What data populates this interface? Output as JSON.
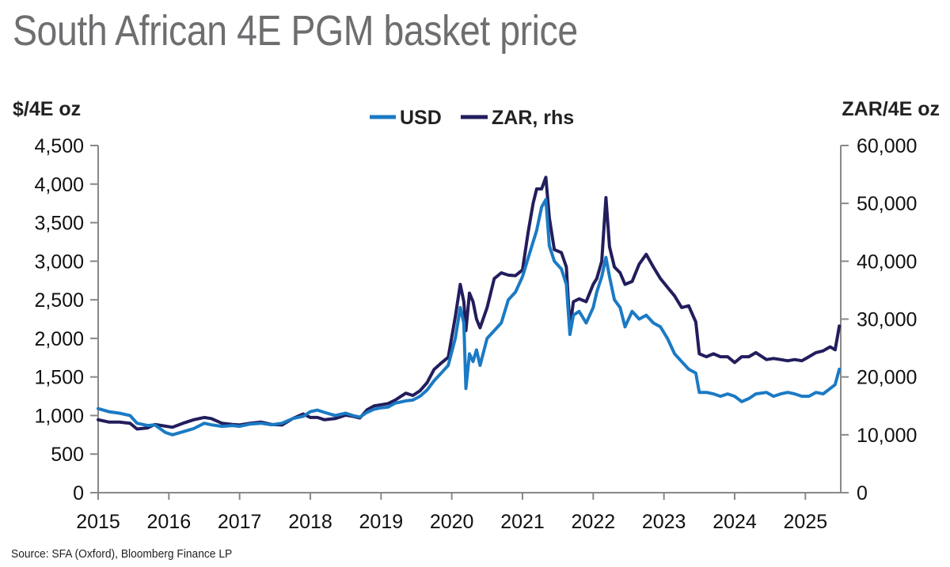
{
  "title": "South African 4E PGM basket price",
  "source": "Source: SFA (Oxford), Bloomberg Finance LP",
  "chart_data": {
    "type": "line",
    "ylabel_left": "$/4E oz",
    "ylabel_right": "ZAR/4E oz",
    "ylim_left": [
      0,
      4500
    ],
    "ylim_right": [
      0,
      60000
    ],
    "xlim": [
      2015.0,
      2025.5
    ],
    "left_ticks": [
      "0",
      "500",
      "1,000",
      "1,500",
      "2,000",
      "2,500",
      "3,000",
      "3,500",
      "4,000",
      "4,500"
    ],
    "left_tick_values": [
      0,
      500,
      1000,
      1500,
      2000,
      2500,
      3000,
      3500,
      4000,
      4500
    ],
    "right_ticks": [
      "0",
      "10,000",
      "20,000",
      "30,000",
      "40,000",
      "50,000",
      "60,000"
    ],
    "right_tick_values": [
      0,
      10000,
      20000,
      30000,
      40000,
      50000,
      60000
    ],
    "x_ticks": [
      "2015",
      "2016",
      "2017",
      "2018",
      "2019",
      "2020",
      "2021",
      "2022",
      "2023",
      "2024",
      "2025"
    ],
    "x_tick_values": [
      2015,
      2016,
      2017,
      2018,
      2019,
      2020,
      2021,
      2022,
      2023,
      2024,
      2025
    ],
    "legend_position": "top-center",
    "series": [
      {
        "name": "USD",
        "axis": "left",
        "color": "#1b7ac4",
        "points": [
          [
            2015.0,
            1090
          ],
          [
            2015.15,
            1050
          ],
          [
            2015.3,
            1030
          ],
          [
            2015.45,
            1000
          ],
          [
            2015.55,
            900
          ],
          [
            2015.7,
            870
          ],
          [
            2015.8,
            880
          ],
          [
            2015.95,
            780
          ],
          [
            2016.05,
            750
          ],
          [
            2016.2,
            790
          ],
          [
            2016.35,
            830
          ],
          [
            2016.5,
            900
          ],
          [
            2016.6,
            880
          ],
          [
            2016.75,
            860
          ],
          [
            2016.9,
            870
          ],
          [
            2017.0,
            860
          ],
          [
            2017.15,
            890
          ],
          [
            2017.3,
            900
          ],
          [
            2017.45,
            880
          ],
          [
            2017.6,
            900
          ],
          [
            2017.75,
            960
          ],
          [
            2017.9,
            990
          ],
          [
            2018.0,
            1050
          ],
          [
            2018.1,
            1070
          ],
          [
            2018.2,
            1040
          ],
          [
            2018.35,
            1000
          ],
          [
            2018.5,
            1030
          ],
          [
            2018.6,
            1000
          ],
          [
            2018.7,
            980
          ],
          [
            2018.8,
            1040
          ],
          [
            2018.9,
            1080
          ],
          [
            2019.0,
            1100
          ],
          [
            2019.1,
            1110
          ],
          [
            2019.2,
            1160
          ],
          [
            2019.35,
            1190
          ],
          [
            2019.45,
            1200
          ],
          [
            2019.55,
            1250
          ],
          [
            2019.65,
            1330
          ],
          [
            2019.75,
            1450
          ],
          [
            2019.85,
            1550
          ],
          [
            2019.95,
            1650
          ],
          [
            2020.05,
            2000
          ],
          [
            2020.12,
            2400
          ],
          [
            2020.17,
            2200
          ],
          [
            2020.2,
            1350
          ],
          [
            2020.25,
            1800
          ],
          [
            2020.3,
            1700
          ],
          [
            2020.35,
            1850
          ],
          [
            2020.4,
            1650
          ],
          [
            2020.5,
            2000
          ],
          [
            2020.6,
            2100
          ],
          [
            2020.7,
            2200
          ],
          [
            2020.8,
            2500
          ],
          [
            2020.9,
            2600
          ],
          [
            2021.0,
            2800
          ],
          [
            2021.1,
            3100
          ],
          [
            2021.2,
            3400
          ],
          [
            2021.27,
            3700
          ],
          [
            2021.33,
            3800
          ],
          [
            2021.38,
            3200
          ],
          [
            2021.45,
            3000
          ],
          [
            2021.55,
            2900
          ],
          [
            2021.62,
            2700
          ],
          [
            2021.67,
            2050
          ],
          [
            2021.72,
            2300
          ],
          [
            2021.8,
            2350
          ],
          [
            2021.9,
            2200
          ],
          [
            2022.0,
            2400
          ],
          [
            2022.05,
            2600
          ],
          [
            2022.12,
            2800
          ],
          [
            2022.18,
            3050
          ],
          [
            2022.23,
            2800
          ],
          [
            2022.3,
            2500
          ],
          [
            2022.38,
            2400
          ],
          [
            2022.45,
            2150
          ],
          [
            2022.55,
            2350
          ],
          [
            2022.65,
            2250
          ],
          [
            2022.75,
            2300
          ],
          [
            2022.85,
            2200
          ],
          [
            2022.95,
            2150
          ],
          [
            2023.05,
            2000
          ],
          [
            2023.15,
            1800
          ],
          [
            2023.25,
            1700
          ],
          [
            2023.35,
            1600
          ],
          [
            2023.45,
            1550
          ],
          [
            2023.5,
            1300
          ],
          [
            2023.6,
            1300
          ],
          [
            2023.7,
            1280
          ],
          [
            2023.8,
            1250
          ],
          [
            2023.9,
            1280
          ],
          [
            2024.0,
            1250
          ],
          [
            2024.1,
            1180
          ],
          [
            2024.2,
            1220
          ],
          [
            2024.3,
            1280
          ],
          [
            2024.45,
            1300
          ],
          [
            2024.55,
            1250
          ],
          [
            2024.65,
            1280
          ],
          [
            2024.75,
            1300
          ],
          [
            2024.85,
            1280
          ],
          [
            2024.95,
            1250
          ],
          [
            2025.05,
            1250
          ],
          [
            2025.15,
            1300
          ],
          [
            2025.25,
            1280
          ],
          [
            2025.35,
            1350
          ],
          [
            2025.42,
            1400
          ],
          [
            2025.48,
            1600
          ]
        ]
      },
      {
        "name": "ZAR, rhs",
        "axis": "right",
        "color": "#221d5c",
        "points": [
          [
            2015.0,
            12600
          ],
          [
            2015.15,
            12200
          ],
          [
            2015.3,
            12200
          ],
          [
            2015.45,
            12000
          ],
          [
            2015.55,
            11000
          ],
          [
            2015.7,
            11200
          ],
          [
            2015.8,
            11800
          ],
          [
            2015.95,
            11500
          ],
          [
            2016.05,
            11300
          ],
          [
            2016.2,
            12000
          ],
          [
            2016.35,
            12600
          ],
          [
            2016.5,
            13000
          ],
          [
            2016.6,
            12800
          ],
          [
            2016.75,
            12000
          ],
          [
            2016.9,
            11800
          ],
          [
            2017.0,
            11700
          ],
          [
            2017.15,
            12000
          ],
          [
            2017.3,
            12200
          ],
          [
            2017.45,
            11800
          ],
          [
            2017.6,
            11700
          ],
          [
            2017.75,
            12800
          ],
          [
            2017.9,
            13600
          ],
          [
            2018.0,
            13000
          ],
          [
            2018.1,
            13000
          ],
          [
            2018.2,
            12600
          ],
          [
            2018.35,
            12800
          ],
          [
            2018.5,
            13400
          ],
          [
            2018.6,
            13200
          ],
          [
            2018.7,
            12900
          ],
          [
            2018.8,
            14300
          ],
          [
            2018.9,
            15000
          ],
          [
            2019.0,
            15200
          ],
          [
            2019.1,
            15400
          ],
          [
            2019.2,
            16000
          ],
          [
            2019.35,
            17200
          ],
          [
            2019.45,
            16800
          ],
          [
            2019.55,
            17600
          ],
          [
            2019.65,
            19000
          ],
          [
            2019.75,
            21300
          ],
          [
            2019.85,
            22400
          ],
          [
            2019.95,
            23400
          ],
          [
            2020.05,
            30400
          ],
          [
            2020.12,
            36000
          ],
          [
            2020.17,
            33000
          ],
          [
            2020.2,
            28000
          ],
          [
            2020.25,
            34500
          ],
          [
            2020.3,
            33000
          ],
          [
            2020.35,
            30000
          ],
          [
            2020.4,
            28500
          ],
          [
            2020.5,
            32000
          ],
          [
            2020.6,
            37000
          ],
          [
            2020.7,
            38000
          ],
          [
            2020.8,
            37600
          ],
          [
            2020.9,
            37500
          ],
          [
            2021.0,
            38500
          ],
          [
            2021.08,
            45000
          ],
          [
            2021.15,
            50000
          ],
          [
            2021.2,
            52500
          ],
          [
            2021.27,
            52500
          ],
          [
            2021.33,
            54500
          ],
          [
            2021.38,
            47500
          ],
          [
            2021.45,
            42000
          ],
          [
            2021.55,
            41500
          ],
          [
            2021.62,
            39000
          ],
          [
            2021.67,
            28500
          ],
          [
            2021.72,
            33000
          ],
          [
            2021.8,
            33500
          ],
          [
            2021.9,
            33000
          ],
          [
            2022.0,
            36000
          ],
          [
            2022.05,
            37000
          ],
          [
            2022.12,
            40000
          ],
          [
            2022.18,
            51000
          ],
          [
            2022.23,
            42500
          ],
          [
            2022.3,
            39000
          ],
          [
            2022.38,
            38000
          ],
          [
            2022.45,
            36000
          ],
          [
            2022.55,
            36500
          ],
          [
            2022.65,
            39500
          ],
          [
            2022.75,
            41200
          ],
          [
            2022.85,
            39000
          ],
          [
            2022.95,
            37000
          ],
          [
            2023.05,
            35500
          ],
          [
            2023.15,
            34000
          ],
          [
            2023.25,
            32000
          ],
          [
            2023.35,
            32300
          ],
          [
            2023.45,
            29500
          ],
          [
            2023.5,
            24000
          ],
          [
            2023.6,
            23500
          ],
          [
            2023.7,
            24000
          ],
          [
            2023.8,
            23500
          ],
          [
            2023.9,
            23500
          ],
          [
            2024.0,
            22500
          ],
          [
            2024.1,
            23500
          ],
          [
            2024.2,
            23500
          ],
          [
            2024.3,
            24200
          ],
          [
            2024.45,
            23000
          ],
          [
            2024.55,
            23200
          ],
          [
            2024.65,
            23000
          ],
          [
            2024.75,
            22800
          ],
          [
            2024.85,
            23000
          ],
          [
            2024.95,
            22800
          ],
          [
            2025.05,
            23500
          ],
          [
            2025.15,
            24200
          ],
          [
            2025.25,
            24500
          ],
          [
            2025.35,
            25200
          ],
          [
            2025.42,
            24700
          ],
          [
            2025.48,
            28800
          ]
        ]
      }
    ]
  }
}
